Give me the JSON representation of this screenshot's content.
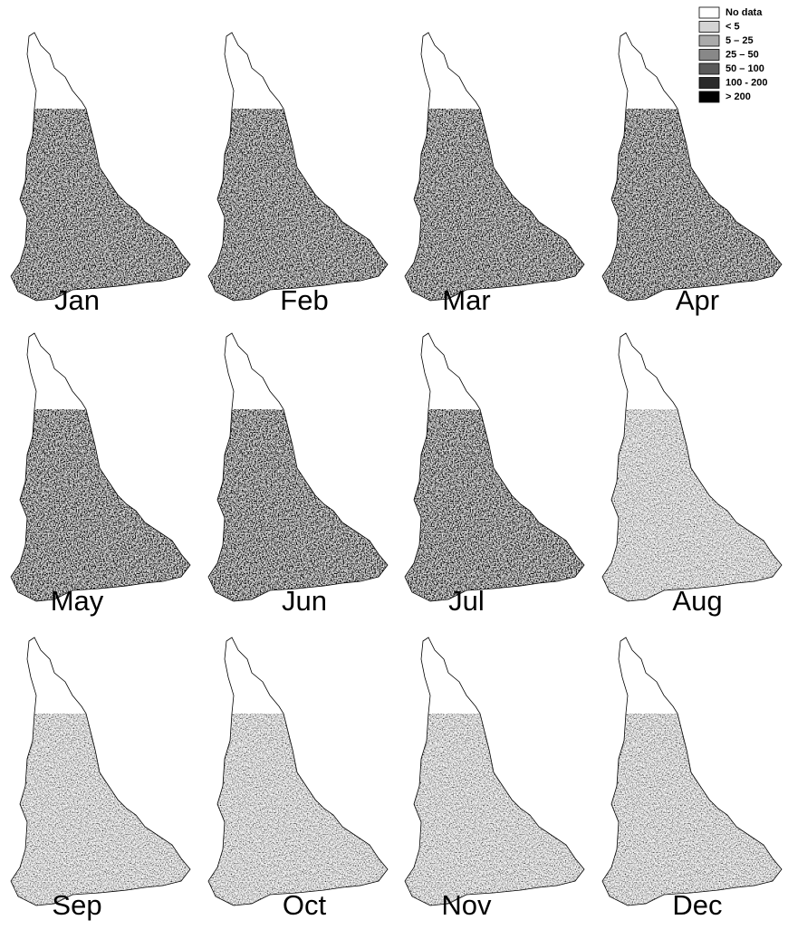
{
  "panels": [
    {
      "label": "Jan"
    },
    {
      "label": "Feb"
    },
    {
      "label": "Mar"
    },
    {
      "label": "Apr"
    },
    {
      "label": "May"
    },
    {
      "label": "Jun"
    },
    {
      "label": "Jul"
    },
    {
      "label": "Aug"
    },
    {
      "label": "Sep"
    },
    {
      "label": "Oct"
    },
    {
      "label": "Nov"
    },
    {
      "label": "Dec"
    }
  ],
  "legend": {
    "items": [
      "No data",
      "< 5",
      "5  –  25",
      "25 –  50",
      "50 – 100",
      "100 - 200",
      ">      200"
    ]
  }
}
